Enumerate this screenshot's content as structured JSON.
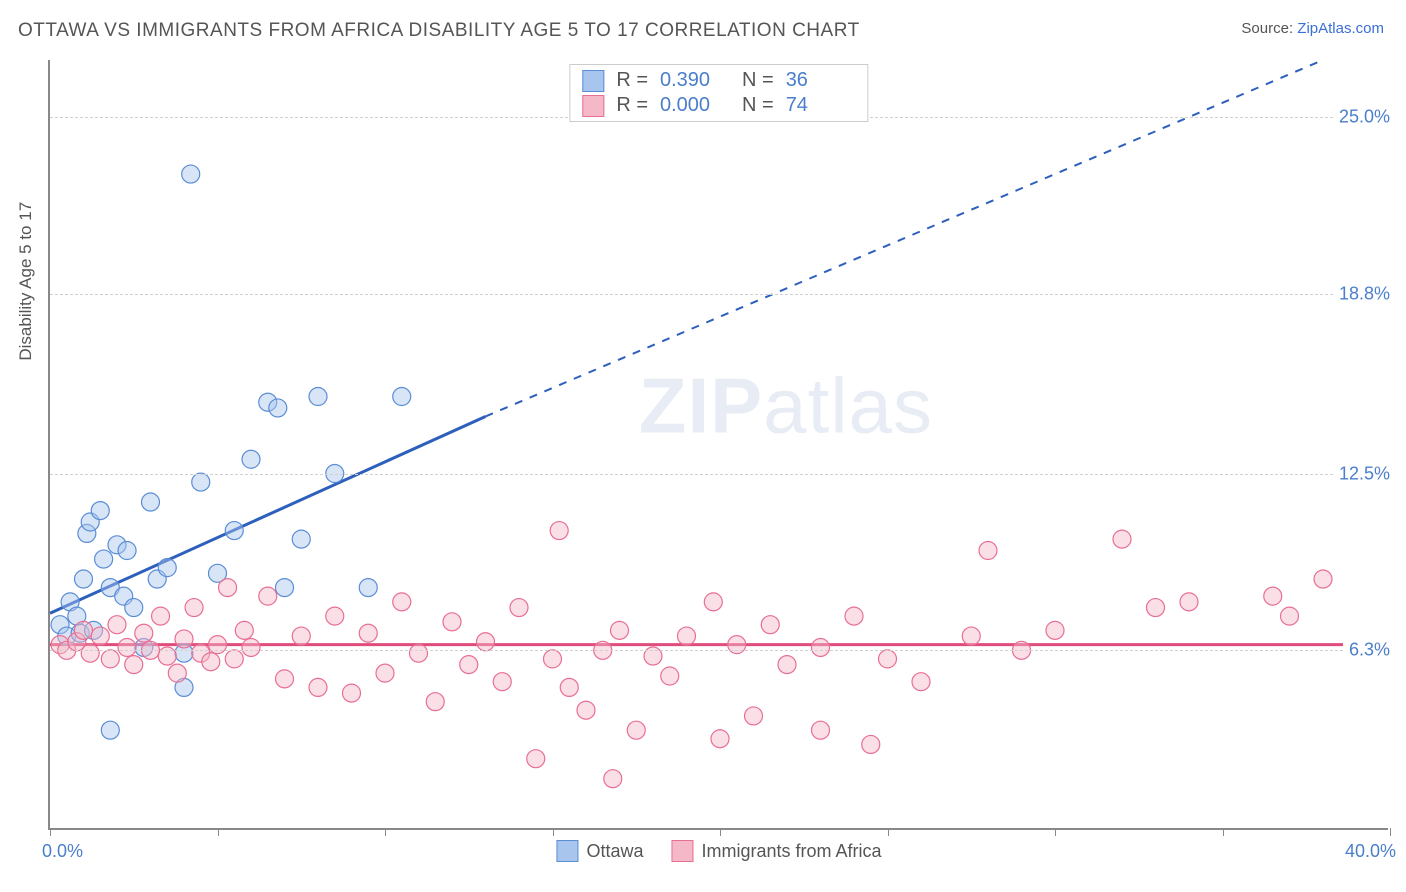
{
  "title": "OTTAWA VS IMMIGRANTS FROM AFRICA DISABILITY AGE 5 TO 17 CORRELATION CHART",
  "source_label": "Source:",
  "source_name": "ZipAtlas.com",
  "ylabel": "Disability Age 5 to 17",
  "watermark_bold": "ZIP",
  "watermark_light": "atlas",
  "chart": {
    "type": "scatter",
    "xlim": [
      0,
      40
    ],
    "ylim": [
      0,
      27
    ],
    "x_min_label": "0.0%",
    "x_max_label": "40.0%",
    "xticks": [
      0,
      5,
      10,
      15,
      20,
      25,
      30,
      35,
      40
    ],
    "yticks": [
      6.3,
      12.5,
      18.8,
      25.0
    ],
    "ytick_labels": [
      "6.3%",
      "12.5%",
      "18.8%",
      "25.0%"
    ],
    "background_color": "#ffffff",
    "grid_color": "#d0d0d0",
    "axis_color": "#888888",
    "marker_radius": 9,
    "marker_opacity": 0.45,
    "series": [
      {
        "name": "Ottawa",
        "color_fill": "#a8c6ed",
        "color_stroke": "#5a8dd6",
        "r_label": "R =",
        "r_value": "0.390",
        "n_label": "N =",
        "n_value": "36",
        "trend": {
          "x1": 0,
          "y1": 7.6,
          "x2": 13,
          "y2": 14.5,
          "color": "#2d5fbd",
          "solid_until_x": 13,
          "dash_to_x": 38,
          "dash_to_y": 27
        },
        "points": [
          [
            0.3,
            7.2
          ],
          [
            0.5,
            6.8
          ],
          [
            0.6,
            8.0
          ],
          [
            0.8,
            7.5
          ],
          [
            0.9,
            6.9
          ],
          [
            1.0,
            8.8
          ],
          [
            1.1,
            10.4
          ],
          [
            1.2,
            10.8
          ],
          [
            1.3,
            7.0
          ],
          [
            1.5,
            11.2
          ],
          [
            1.6,
            9.5
          ],
          [
            1.8,
            8.5
          ],
          [
            2.0,
            10.0
          ],
          [
            2.2,
            8.2
          ],
          [
            2.3,
            9.8
          ],
          [
            2.5,
            7.8
          ],
          [
            2.8,
            6.4
          ],
          [
            3.0,
            11.5
          ],
          [
            3.2,
            8.8
          ],
          [
            3.5,
            9.2
          ],
          [
            4.0,
            6.2
          ],
          [
            4.2,
            23.0
          ],
          [
            4.5,
            12.2
          ],
          [
            5.0,
            9.0
          ],
          [
            5.5,
            10.5
          ],
          [
            6.0,
            13.0
          ],
          [
            6.5,
            15.0
          ],
          [
            6.8,
            14.8
          ],
          [
            7.0,
            8.5
          ],
          [
            7.5,
            10.2
          ],
          [
            8.0,
            15.2
          ],
          [
            8.5,
            12.5
          ],
          [
            9.5,
            8.5
          ],
          [
            10.5,
            15.2
          ],
          [
            1.8,
            3.5
          ],
          [
            4.0,
            5.0
          ]
        ]
      },
      {
        "name": "Immigrants from Africa",
        "color_fill": "#f5b8c8",
        "color_stroke": "#e86f94",
        "r_label": "R =",
        "r_value": "0.000",
        "n_label": "N =",
        "n_value": "74",
        "trend": {
          "x1": 0,
          "y1": 6.5,
          "x2": 40,
          "y2": 6.5,
          "color": "#e04d7d",
          "solid_until_x": 40
        },
        "points": [
          [
            0.3,
            6.5
          ],
          [
            0.5,
            6.3
          ],
          [
            0.8,
            6.6
          ],
          [
            1.0,
            7.0
          ],
          [
            1.2,
            6.2
          ],
          [
            1.5,
            6.8
          ],
          [
            1.8,
            6.0
          ],
          [
            2.0,
            7.2
          ],
          [
            2.3,
            6.4
          ],
          [
            2.5,
            5.8
          ],
          [
            2.8,
            6.9
          ],
          [
            3.0,
            6.3
          ],
          [
            3.3,
            7.5
          ],
          [
            3.5,
            6.1
          ],
          [
            3.8,
            5.5
          ],
          [
            4.0,
            6.7
          ],
          [
            4.3,
            7.8
          ],
          [
            4.5,
            6.2
          ],
          [
            4.8,
            5.9
          ],
          [
            5.0,
            6.5
          ],
          [
            5.3,
            8.5
          ],
          [
            5.5,
            6.0
          ],
          [
            5.8,
            7.0
          ],
          [
            6.0,
            6.4
          ],
          [
            6.5,
            8.2
          ],
          [
            7.0,
            5.3
          ],
          [
            7.5,
            6.8
          ],
          [
            8.0,
            5.0
          ],
          [
            8.5,
            7.5
          ],
          [
            9.0,
            4.8
          ],
          [
            9.5,
            6.9
          ],
          [
            10.0,
            5.5
          ],
          [
            10.5,
            8.0
          ],
          [
            11.0,
            6.2
          ],
          [
            11.5,
            4.5
          ],
          [
            12.0,
            7.3
          ],
          [
            12.5,
            5.8
          ],
          [
            13.0,
            6.6
          ],
          [
            13.5,
            5.2
          ],
          [
            14.0,
            7.8
          ],
          [
            14.5,
            2.5
          ],
          [
            15.0,
            6.0
          ],
          [
            15.2,
            10.5
          ],
          [
            15.5,
            5.0
          ],
          [
            16.0,
            4.2
          ],
          [
            16.5,
            6.3
          ],
          [
            16.8,
            1.8
          ],
          [
            17.0,
            7.0
          ],
          [
            17.5,
            3.5
          ],
          [
            18.0,
            6.1
          ],
          [
            18.5,
            5.4
          ],
          [
            19.0,
            6.8
          ],
          [
            19.8,
            8.0
          ],
          [
            20.0,
            3.2
          ],
          [
            20.5,
            6.5
          ],
          [
            21.0,
            4.0
          ],
          [
            21.5,
            7.2
          ],
          [
            22.0,
            5.8
          ],
          [
            23.0,
            6.4
          ],
          [
            23.0,
            3.5
          ],
          [
            24.0,
            7.5
          ],
          [
            24.5,
            3.0
          ],
          [
            25.0,
            6.0
          ],
          [
            26.0,
            5.2
          ],
          [
            27.5,
            6.8
          ],
          [
            28.0,
            9.8
          ],
          [
            29.0,
            6.3
          ],
          [
            30.0,
            7.0
          ],
          [
            32.0,
            10.2
          ],
          [
            33.0,
            7.8
          ],
          [
            34.0,
            8.0
          ],
          [
            36.5,
            8.2
          ],
          [
            37.0,
            7.5
          ],
          [
            38.0,
            8.8
          ]
        ]
      }
    ]
  },
  "legend_bottom": [
    {
      "label": "Ottawa",
      "fill": "#a8c6ed",
      "stroke": "#5a8dd6"
    },
    {
      "label": "Immigrants from Africa",
      "fill": "#f5b8c8",
      "stroke": "#e86f94"
    }
  ]
}
